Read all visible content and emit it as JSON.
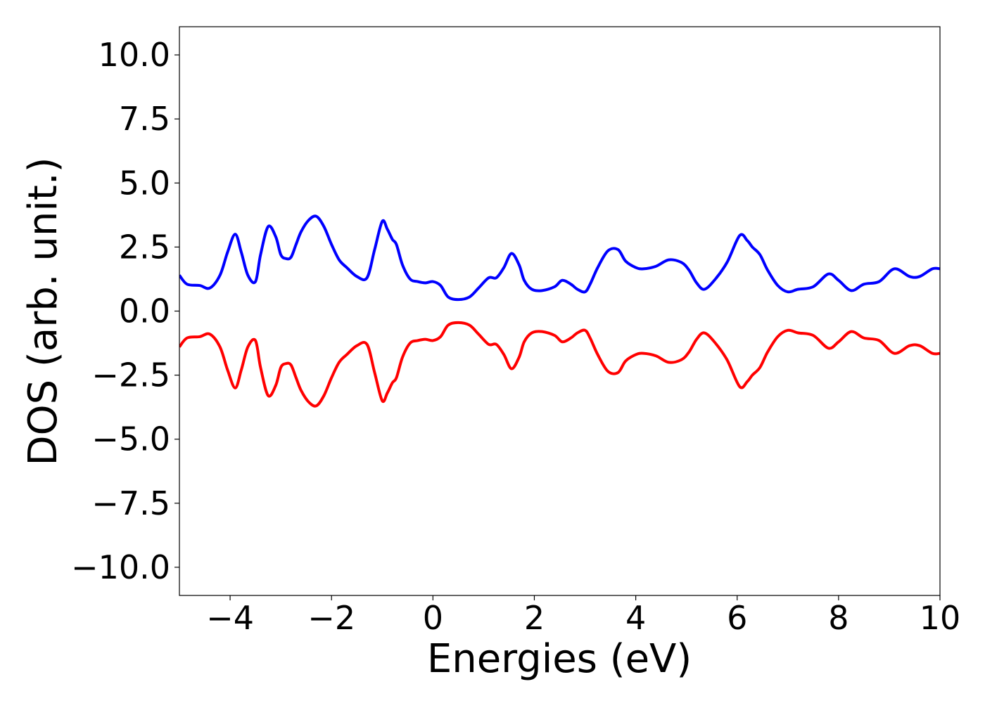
{
  "chart_data": {
    "type": "line",
    "title": "",
    "xlabel": "Energies (eV)",
    "ylabel": "DOS (arb. unit.)",
    "xlim": [
      -5,
      10
    ],
    "ylim": [
      -11.1,
      11.1
    ],
    "xticks": [
      -4,
      -2,
      0,
      2,
      4,
      6,
      8,
      10
    ],
    "xtick_labels": [
      "−4",
      "−2",
      "0",
      "2",
      "4",
      "6",
      "8",
      "10"
    ],
    "yticks": [
      -10,
      -7.5,
      -5,
      -2.5,
      0,
      2.5,
      5,
      7.5,
      10
    ],
    "ytick_labels": [
      "−10.0",
      "−7.5",
      "−5.0",
      "−2.5",
      "0.0",
      "2.5",
      "5.0",
      "7.5",
      "10.0"
    ],
    "grid": false,
    "legend": "none",
    "series": [
      {
        "color": "#0000ff",
        "x": [
          -5.0,
          -4.85,
          -4.6,
          -4.4,
          -4.2,
          -4.05,
          -3.9,
          -3.78,
          -3.65,
          -3.5,
          -3.4,
          -3.25,
          -3.1,
          -3.0,
          -2.9,
          -2.8,
          -2.7,
          -2.6,
          -2.45,
          -2.3,
          -2.15,
          -2.0,
          -1.85,
          -1.7,
          -1.5,
          -1.3,
          -1.15,
          -1.0,
          -0.9,
          -0.8,
          -0.72,
          -0.6,
          -0.45,
          -0.3,
          -0.15,
          0.0,
          0.15,
          0.3,
          0.5,
          0.72,
          0.9,
          1.1,
          1.25,
          1.4,
          1.55,
          1.7,
          1.8,
          1.95,
          2.15,
          2.4,
          2.55,
          2.72,
          2.85,
          3.0,
          3.1,
          3.25,
          3.45,
          3.65,
          3.8,
          4.0,
          4.15,
          4.4,
          4.65,
          4.9,
          5.05,
          5.2,
          5.35,
          5.55,
          5.8,
          6.05,
          6.2,
          6.3,
          6.45,
          6.6,
          6.8,
          7.0,
          7.2,
          7.5,
          7.8,
          8.0,
          8.25,
          8.5,
          8.8,
          9.1,
          9.4,
          9.6,
          9.85,
          10.0
        ],
        "y": [
          1.4,
          1.05,
          1.0,
          0.9,
          1.4,
          2.3,
          3.0,
          2.3,
          1.4,
          1.15,
          2.2,
          3.3,
          2.9,
          2.2,
          2.05,
          2.1,
          2.6,
          3.1,
          3.55,
          3.7,
          3.3,
          2.6,
          2.0,
          1.7,
          1.35,
          1.3,
          2.4,
          3.5,
          3.2,
          2.8,
          2.6,
          1.8,
          1.25,
          1.15,
          1.1,
          1.15,
          1.0,
          0.55,
          0.45,
          0.55,
          0.9,
          1.3,
          1.3,
          1.7,
          2.25,
          1.8,
          1.2,
          0.85,
          0.8,
          0.95,
          1.2,
          1.05,
          0.85,
          0.75,
          1.05,
          1.7,
          2.35,
          2.4,
          1.95,
          1.7,
          1.65,
          1.75,
          2.0,
          1.9,
          1.6,
          1.1,
          0.85,
          1.2,
          1.9,
          2.95,
          2.75,
          2.5,
          2.2,
          1.6,
          1.0,
          0.75,
          0.85,
          0.95,
          1.45,
          1.2,
          0.8,
          1.05,
          1.15,
          1.65,
          1.35,
          1.35,
          1.65,
          1.65
        ]
      },
      {
        "color": "#ff0000",
        "x": [
          -5.0,
          -4.85,
          -4.6,
          -4.4,
          -4.2,
          -4.05,
          -3.9,
          -3.78,
          -3.65,
          -3.5,
          -3.4,
          -3.25,
          -3.1,
          -3.0,
          -2.9,
          -2.8,
          -2.7,
          -2.6,
          -2.45,
          -2.3,
          -2.15,
          -2.0,
          -1.85,
          -1.7,
          -1.5,
          -1.3,
          -1.15,
          -1.0,
          -0.9,
          -0.8,
          -0.72,
          -0.6,
          -0.45,
          -0.3,
          -0.15,
          0.0,
          0.15,
          0.3,
          0.5,
          0.72,
          0.9,
          1.1,
          1.25,
          1.4,
          1.55,
          1.7,
          1.8,
          1.95,
          2.15,
          2.4,
          2.55,
          2.72,
          2.85,
          3.0,
          3.1,
          3.25,
          3.45,
          3.65,
          3.8,
          4.0,
          4.15,
          4.4,
          4.65,
          4.9,
          5.05,
          5.2,
          5.35,
          5.55,
          5.8,
          6.05,
          6.2,
          6.3,
          6.45,
          6.6,
          6.8,
          7.0,
          7.2,
          7.5,
          7.8,
          8.0,
          8.25,
          8.5,
          8.8,
          9.1,
          9.4,
          9.6,
          9.85,
          10.0
        ],
        "y": [
          -1.4,
          -1.05,
          -1.0,
          -0.9,
          -1.4,
          -2.3,
          -3.0,
          -2.3,
          -1.4,
          -1.15,
          -2.2,
          -3.3,
          -2.9,
          -2.2,
          -2.05,
          -2.1,
          -2.6,
          -3.1,
          -3.55,
          -3.7,
          -3.3,
          -2.6,
          -2.0,
          -1.7,
          -1.35,
          -1.3,
          -2.4,
          -3.5,
          -3.2,
          -2.8,
          -2.6,
          -1.8,
          -1.25,
          -1.15,
          -1.1,
          -1.15,
          -1.0,
          -0.55,
          -0.45,
          -0.55,
          -0.9,
          -1.3,
          -1.3,
          -1.7,
          -2.25,
          -1.8,
          -1.2,
          -0.85,
          -0.8,
          -0.95,
          -1.2,
          -1.05,
          -0.85,
          -0.75,
          -1.05,
          -1.7,
          -2.35,
          -2.4,
          -1.95,
          -1.7,
          -1.65,
          -1.75,
          -2.0,
          -1.9,
          -1.6,
          -1.1,
          -0.85,
          -1.2,
          -1.9,
          -2.95,
          -2.75,
          -2.5,
          -2.2,
          -1.6,
          -1.0,
          -0.75,
          -0.85,
          -0.95,
          -1.45,
          -1.2,
          -0.8,
          -1.05,
          -1.15,
          -1.65,
          -1.35,
          -1.35,
          -1.65,
          -1.65
        ]
      }
    ]
  }
}
